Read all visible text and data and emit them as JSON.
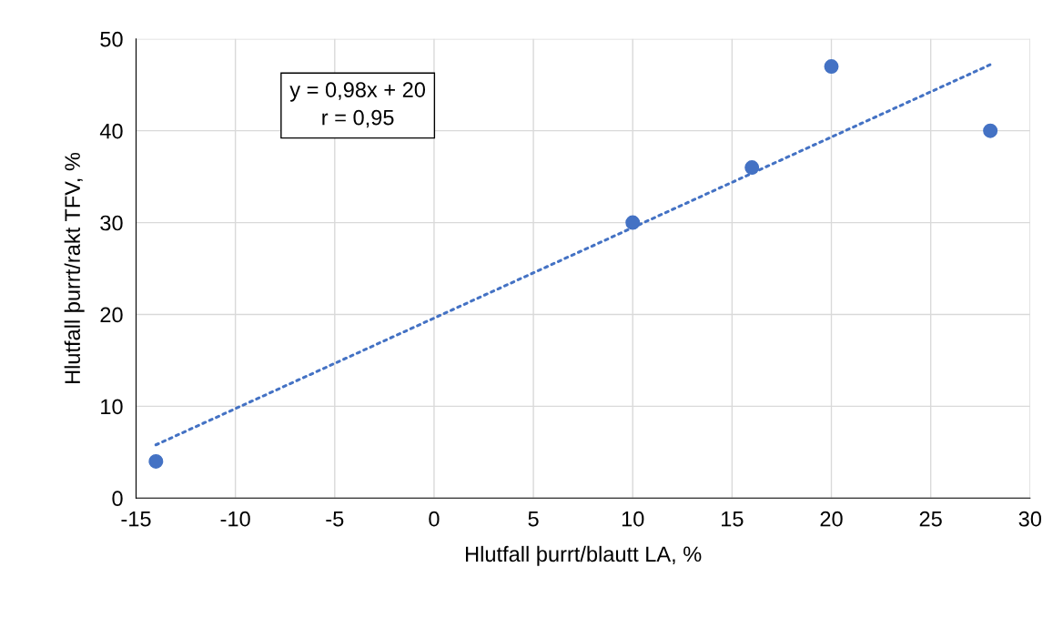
{
  "chart_data": {
    "type": "scatter",
    "xlabel": "Hlutfall þurrt/blautt LA, %",
    "ylabel": "Hlutfall þurrt/rakt TFV, %",
    "annotations": [
      "y = 0,98x + 20\nr = 0,95"
    ],
    "series": [
      {
        "color": "#4472c4",
        "marker": "circle",
        "x": [
          -14,
          10,
          16,
          20,
          28
        ],
        "values": [
          4,
          30,
          36,
          47,
          40
        ]
      },
      {
        "type": "line",
        "color": "#4472c4",
        "line_style": "dotted",
        "x": [
          -14,
          28
        ],
        "values": [
          5.8,
          47.2
        ]
      }
    ],
    "xlim": [
      -15,
      30
    ],
    "xticks": [
      -15,
      -10,
      -5,
      0,
      5,
      10,
      15,
      20,
      25,
      30
    ],
    "ylim": [
      0,
      50
    ],
    "yticks": [
      0,
      10,
      20,
      30,
      40,
      50
    ],
    "grid": true,
    "legend": false
  }
}
